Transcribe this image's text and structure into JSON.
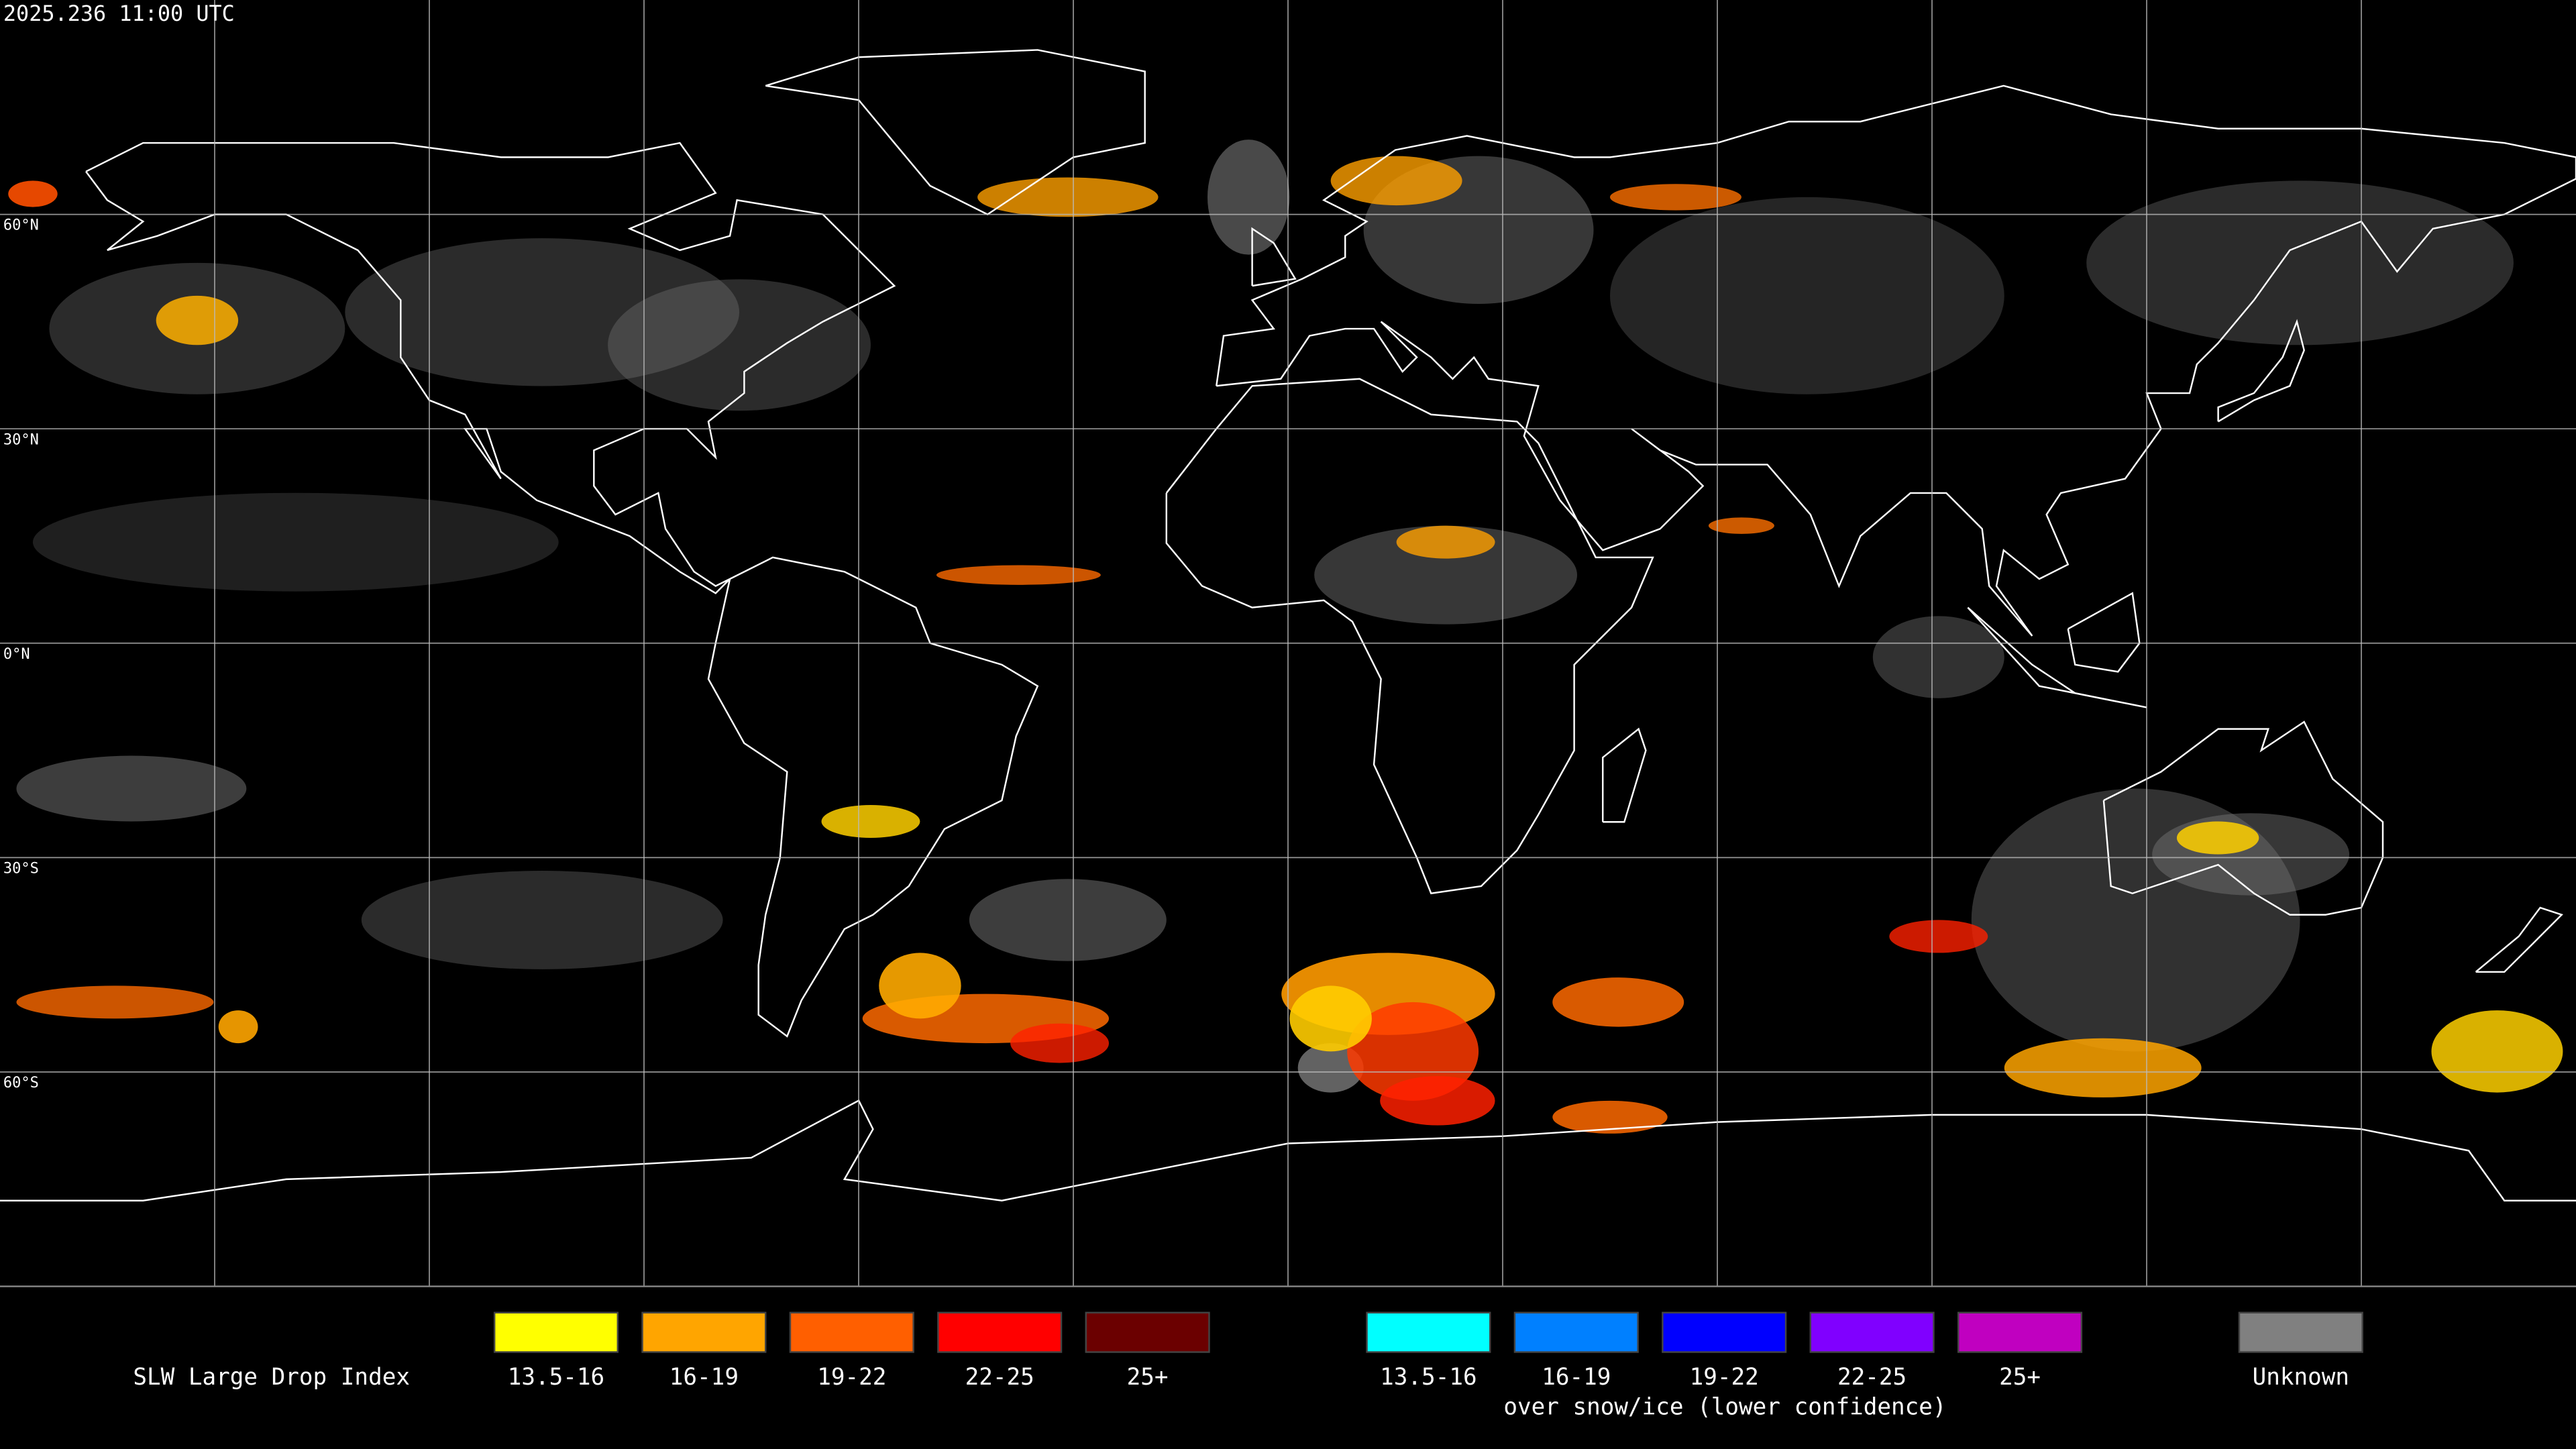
{
  "header": {
    "title": "2025.236 11:00 UTC"
  },
  "map": {
    "lat_labels": [
      "60°N",
      "30°N",
      "0°N",
      "30°S",
      "60°S"
    ]
  },
  "legend": {
    "title": "SLW Large Drop Index",
    "items": [
      {
        "label": "13.5-16",
        "color": "#ffff00"
      },
      {
        "label": "16-19",
        "color": "#ffa500"
      },
      {
        "label": "19-22",
        "color": "#ff5f00"
      },
      {
        "label": "22-25",
        "color": "#ff0000"
      },
      {
        "label": "25+",
        "color": "#6b0000"
      }
    ],
    "snow_items": [
      {
        "label": "13.5-16",
        "color": "#00ffff"
      },
      {
        "label": "16-19",
        "color": "#0080ff"
      },
      {
        "label": "19-22",
        "color": "#0000ff"
      },
      {
        "label": "22-25",
        "color": "#8000ff"
      },
      {
        "label": "25+",
        "color": "#c000c0"
      }
    ],
    "snow_caption": "over snow/ice (lower confidence)",
    "unknown": {
      "label": "Unknown",
      "color": "#808080"
    }
  }
}
